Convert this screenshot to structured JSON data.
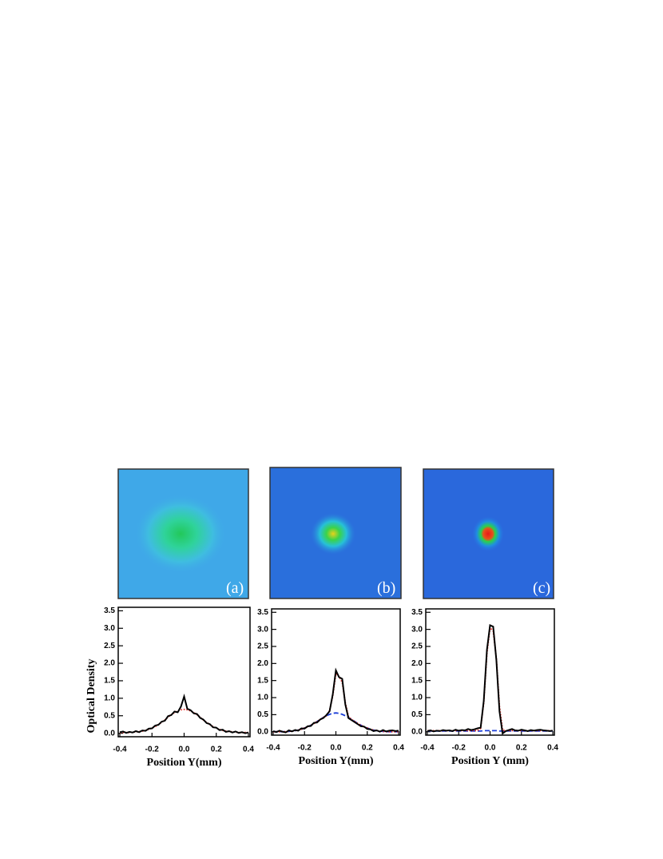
{
  "chart_data": [
    {
      "type": "line",
      "panel_label": "(a)",
      "xlabel": "Position Y(mm)",
      "ylabel": "Optical Density",
      "xlim": [
        -0.41,
        0.41
      ],
      "ylim": [
        -0.1,
        3.6
      ],
      "xticks": [
        -0.4,
        -0.2,
        {
          "value": 0,
          "label": "0.0"
        },
        0.2,
        0.4
      ],
      "yticks": [
        {
          "value": 0,
          "label": "0.0"
        },
        0.5,
        {
          "value": 1,
          "label": "1.0"
        },
        1.5,
        {
          "value": 2,
          "label": "2.0"
        },
        2.5,
        {
          "value": 3,
          "label": "3.0"
        },
        3.5
      ],
      "x": [
        -0.4,
        -0.38,
        -0.36,
        -0.34,
        -0.32,
        -0.3,
        -0.28,
        -0.26,
        -0.24,
        -0.22,
        -0.2,
        -0.18,
        -0.16,
        -0.14,
        -0.12,
        -0.1,
        -0.08,
        -0.06,
        -0.04,
        -0.02,
        0,
        0.02,
        0.04,
        0.06,
        0.08,
        0.1,
        0.12,
        0.14,
        0.16,
        0.18,
        0.2,
        0.22,
        0.24,
        0.26,
        0.28,
        0.3,
        0.32,
        0.34,
        0.36,
        0.38,
        0.4
      ],
      "series": [
        {
          "color": "#000000",
          "style": "solid",
          "values": [
            0.03,
            0.05,
            0.01,
            0.04,
            0.02,
            0.06,
            0.03,
            0.08,
            0.07,
            0.13,
            0.14,
            0.22,
            0.24,
            0.33,
            0.36,
            0.49,
            0.52,
            0.62,
            0.6,
            0.76,
            1.05,
            0.7,
            0.66,
            0.57,
            0.55,
            0.44,
            0.39,
            0.29,
            0.26,
            0.17,
            0.16,
            0.09,
            0.1,
            0.04,
            0.06,
            0.02,
            0.05,
            0.01,
            0.03,
            0,
            0.02
          ]
        },
        {
          "color": "#e8231c",
          "style": "dotted",
          "values": [
            0.02,
            0.02,
            0.02,
            0.02,
            0.03,
            0.04,
            0.05,
            0.06,
            0.08,
            0.11,
            0.15,
            0.19,
            0.25,
            0.31,
            0.38,
            0.46,
            0.53,
            0.59,
            0.64,
            0.67,
            0.68,
            0.67,
            0.64,
            0.59,
            0.53,
            0.46,
            0.38,
            0.31,
            0.25,
            0.19,
            0.15,
            0.11,
            0.08,
            0.06,
            0.05,
            0.04,
            0.03,
            0.02,
            0.02,
            0.02,
            0.02
          ]
        }
      ]
    },
    {
      "type": "line",
      "panel_label": "(b)",
      "xlabel": "Position Y(mm)",
      "xlim": [
        -0.41,
        0.41
      ],
      "ylim": [
        -0.1,
        3.6
      ],
      "xticks": [
        -0.4,
        -0.2,
        {
          "value": 0,
          "label": "0.0"
        },
        0.2,
        0.4
      ],
      "yticks": [
        {
          "value": 0,
          "label": "0.0"
        },
        0.5,
        {
          "value": 1,
          "label": "1.0"
        },
        1.5,
        {
          "value": 2,
          "label": "2.0"
        },
        2.5,
        {
          "value": 3,
          "label": "3.0"
        },
        3.5
      ],
      "x": [
        -0.4,
        -0.38,
        -0.36,
        -0.34,
        -0.32,
        -0.3,
        -0.28,
        -0.26,
        -0.24,
        -0.22,
        -0.2,
        -0.18,
        -0.16,
        -0.14,
        -0.12,
        -0.1,
        -0.08,
        -0.06,
        -0.04,
        -0.02,
        0,
        0.02,
        0.04,
        0.06,
        0.08,
        0.1,
        0.12,
        0.14,
        0.16,
        0.18,
        0.2,
        0.22,
        0.24,
        0.26,
        0.28,
        0.3,
        0.32,
        0.34,
        0.36,
        0.38,
        0.4
      ],
      "series": [
        {
          "color": "#000000",
          "style": "solid",
          "values": [
            0.02,
            -0.01,
            0.03,
            0,
            -0.02,
            0.04,
            0.01,
            0.05,
            0.03,
            0.1,
            0.09,
            0.16,
            0.17,
            0.26,
            0.27,
            0.36,
            0.4,
            0.49,
            0.6,
            1.1,
            1.8,
            1.6,
            1.55,
            0.8,
            0.4,
            0.34,
            0.28,
            0.22,
            0.16,
            0.15,
            0.08,
            0.07,
            0.02,
            0.04,
            0,
            0.05,
            0.01,
            0.03,
            0.04,
            0.02,
            0.03
          ]
        },
        {
          "color": "#e8231c",
          "style": "dotted",
          "values": [
            0,
            0,
            0,
            0,
            0,
            0.01,
            0.02,
            0.03,
            0.05,
            0.07,
            0.11,
            0.14,
            0.19,
            0.24,
            0.3,
            0.36,
            0.42,
            0.47,
            0.62,
            1.05,
            1.7,
            1.62,
            1.45,
            0.85,
            0.45,
            0.36,
            0.3,
            0.24,
            0.19,
            0.14,
            0.11,
            0.07,
            0.05,
            0.03,
            0.02,
            0.01,
            0,
            0,
            0,
            0,
            0
          ]
        },
        {
          "color": "#1c3fd8",
          "style": "dashed",
          "values": [
            0,
            0,
            0,
            0,
            0,
            0.01,
            0.02,
            0.03,
            0.05,
            0.07,
            0.11,
            0.14,
            0.19,
            0.24,
            0.3,
            0.36,
            0.42,
            0.47,
            0.51,
            0.54,
            0.55,
            0.54,
            0.51,
            0.47,
            0.42,
            0.36,
            0.3,
            0.24,
            0.19,
            0.14,
            0.11,
            0.07,
            0.05,
            0.03,
            0.02,
            0.01,
            0,
            0,
            0,
            0,
            0
          ]
        }
      ]
    },
    {
      "type": "line",
      "panel_label": "(c)",
      "xlabel": "Position Y (mm)",
      "xlim": [
        -0.41,
        0.41
      ],
      "ylim": [
        -0.1,
        3.6
      ],
      "xticks": [
        -0.4,
        -0.2,
        {
          "value": 0,
          "label": "0.0"
        },
        0.2,
        0.4
      ],
      "yticks": [
        {
          "value": 0,
          "label": "0.0"
        },
        0.5,
        {
          "value": 1,
          "label": "1.0"
        },
        1.5,
        {
          "value": 2,
          "label": "2.0"
        },
        2.5,
        {
          "value": 3,
          "label": "3.0"
        },
        3.5
      ],
      "x": [
        -0.4,
        -0.38,
        -0.36,
        -0.34,
        -0.32,
        -0.3,
        -0.28,
        -0.26,
        -0.24,
        -0.22,
        -0.2,
        -0.18,
        -0.16,
        -0.14,
        -0.12,
        -0.1,
        -0.08,
        -0.06,
        -0.04,
        -0.02,
        0,
        0.02,
        0.04,
        0.06,
        0.08,
        0.1,
        0.12,
        0.14,
        0.16,
        0.18,
        0.2,
        0.22,
        0.24,
        0.26,
        0.28,
        0.3,
        0.32,
        0.34,
        0.36,
        0.38,
        0.4
      ],
      "series": [
        {
          "color": "#000000",
          "style": "solid",
          "values": [
            0.02,
            0.04,
            0.01,
            0.03,
            0.02,
            0.05,
            0.03,
            0.04,
            0.02,
            0.06,
            0.03,
            0.05,
            0.04,
            0.08,
            0.05,
            0.07,
            0.1,
            0.12,
            0.9,
            2.4,
            3.12,
            3.08,
            2.1,
            0.6,
            -0.05,
            0.02,
            0.05,
            0.08,
            0.04,
            0.03,
            0.06,
            0.04,
            0.02,
            0.05,
            0.03,
            0.05,
            0.06,
            0.04,
            0.03,
            0.02,
            0.03
          ]
        },
        {
          "color": "#e8231c",
          "style": "dotted",
          "values": [
            0.03,
            0.03,
            0.03,
            0.03,
            0.03,
            0.03,
            0.03,
            0.03,
            0.03,
            0.03,
            0.03,
            0.03,
            0.03,
            0.03,
            0.03,
            0.03,
            0.03,
            0.1,
            0.85,
            2.3,
            3.05,
            2.95,
            2.15,
            0.75,
            0.05,
            0.03,
            0.03,
            0.03,
            0.03,
            0.03,
            0.03,
            0.03,
            0.03,
            0.03,
            0.03,
            0.03,
            0.03,
            0.03,
            0.03,
            0.03,
            0.03
          ]
        },
        {
          "color": "#1c3fd8",
          "style": "dashed",
          "values": [
            0.02,
            0.02,
            0.02,
            0.02,
            0.02,
            0.02,
            0.02,
            0.02,
            0.02,
            0.02,
            0.02,
            0.02,
            0.02,
            0.02,
            0.02,
            0.02,
            0.02,
            0.02,
            0.03,
            0.03,
            0.03,
            0.03,
            0.03,
            0.02,
            0.02,
            0.02,
            0.02,
            0.02,
            0.02,
            0.02,
            0.02,
            0.02,
            0.02,
            0.02,
            0.02,
            0.02,
            0.02,
            0.02,
            0.02,
            0.02,
            0.02
          ]
        }
      ]
    }
  ]
}
